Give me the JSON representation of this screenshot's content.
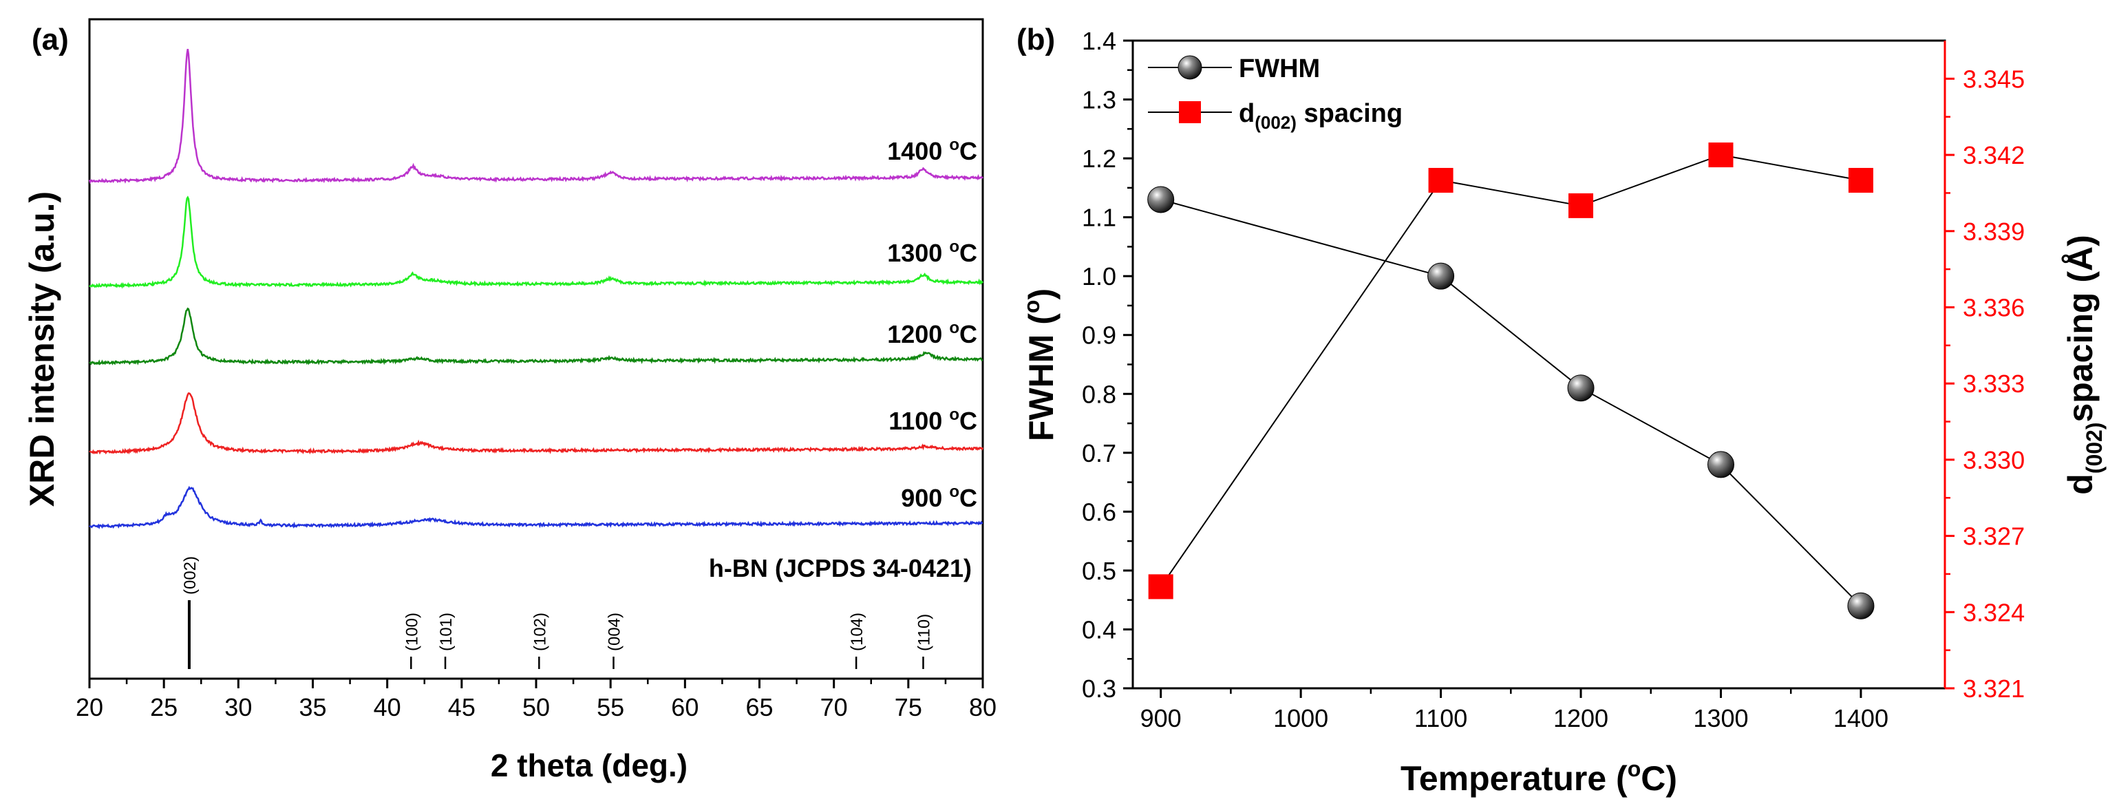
{
  "chart_data": [
    {
      "panel_label": "(a)",
      "type": "line",
      "xlabel": "2 theta (deg.)",
      "ylabel": "XRD intensity (a.u.)",
      "xlim": [
        20,
        80
      ],
      "xticks": [
        "20",
        "25",
        "30",
        "35",
        "40",
        "45",
        "50",
        "55",
        "60",
        "65",
        "70",
        "75",
        "80"
      ],
      "series": [
        {
          "name": "1400 °C",
          "label_main": "1400 ",
          "label_sup": "o",
          "label_unit": "C",
          "color": "#bb33cc",
          "peaks": [
            {
              "x": 26.6,
              "w": 0.3,
              "h": 1.0
            },
            {
              "x": 41.7,
              "w": 0.35,
              "h": 0.09
            },
            {
              "x": 43.0,
              "w": 1.2,
              "h": 0.03
            },
            {
              "x": 55.0,
              "w": 0.45,
              "h": 0.05
            },
            {
              "x": 76.0,
              "w": 0.35,
              "h": 0.07
            }
          ]
        },
        {
          "name": "1300 °C",
          "label_main": "1300 ",
          "label_sup": "o",
          "label_unit": "C",
          "color": "#22ee22",
          "peaks": [
            {
              "x": 26.6,
              "w": 0.32,
              "h": 0.7
            },
            {
              "x": 41.7,
              "w": 0.4,
              "h": 0.07
            },
            {
              "x": 43.0,
              "w": 1.2,
              "h": 0.03
            },
            {
              "x": 55.0,
              "w": 0.5,
              "h": 0.04
            },
            {
              "x": 76.0,
              "w": 0.4,
              "h": 0.06
            }
          ]
        },
        {
          "name": "1200 °C",
          "label_main": "1200 ",
          "label_sup": "o",
          "label_unit": "C",
          "color": "#118811",
          "peaks": [
            {
              "x": 26.6,
              "w": 0.42,
              "h": 0.52
            },
            {
              "x": 42.0,
              "w": 0.8,
              "h": 0.03
            },
            {
              "x": 55.0,
              "w": 0.6,
              "h": 0.03
            },
            {
              "x": 76.2,
              "w": 0.5,
              "h": 0.06
            }
          ]
        },
        {
          "name": "1100 °C",
          "label_main": "1100 ",
          "label_sup": "o",
          "label_unit": "C",
          "color": "#ee2222",
          "peaks": [
            {
              "x": 26.7,
              "w": 0.6,
              "h": 0.45
            },
            {
              "x": 42.2,
              "w": 1.0,
              "h": 0.06
            },
            {
              "x": 76.2,
              "w": 0.6,
              "h": 0.02
            }
          ]
        },
        {
          "name": "900 °C",
          "label_main": "900 ",
          "label_sup": "o",
          "label_unit": "C",
          "color": "#2233dd",
          "peaks": [
            {
              "x": 26.8,
              "w": 0.75,
              "h": 0.33
            },
            {
              "x": 25.2,
              "w": 0.25,
              "h": 0.05
            },
            {
              "x": 31.5,
              "w": 0.12,
              "h": 0.04
            },
            {
              "x": 42.8,
              "w": 1.6,
              "h": 0.05
            }
          ]
        }
      ],
      "reference": {
        "name": "h-BN (JCPDS 34-0421)",
        "lines": [
          {
            "x": 26.7,
            "hkl": "(002)",
            "h": 1.0
          },
          {
            "x": 41.6,
            "hkl": "(100)",
            "h": 0.08
          },
          {
            "x": 43.9,
            "hkl": "(101)",
            "h": 0.05
          },
          {
            "x": 50.2,
            "hkl": "(102)",
            "h": 0.04
          },
          {
            "x": 55.2,
            "hkl": "(004)",
            "h": 0.06
          },
          {
            "x": 71.5,
            "hkl": "(104)",
            "h": 0.03
          },
          {
            "x": 76.0,
            "hkl": "(110)",
            "h": 0.05
          }
        ]
      }
    },
    {
      "panel_label": "(b)",
      "type": "line",
      "xlabel_main": "Temperature (",
      "xlabel_sup": "o",
      "xlabel_end": "C)",
      "x": [
        900,
        1100,
        1200,
        1300,
        1400
      ],
      "xlim": [
        880,
        1460
      ],
      "xticks": [
        "900",
        "1000",
        "1100",
        "1200",
        "1300",
        "1400"
      ],
      "ylabel_left": "FWHM (°)",
      "ylabel_left_main": "FWHM (",
      "ylabel_left_sup": "o",
      "ylabel_left_end": ")",
      "ylim_left": [
        0.3,
        1.4
      ],
      "yticks_left": [
        "0.3",
        "0.4",
        "0.5",
        "0.6",
        "0.7",
        "0.8",
        "0.9",
        "1.0",
        "1.1",
        "1.2",
        "1.3",
        "1.4"
      ],
      "ylabel_right_main": "d",
      "ylabel_right_sub": "(002)",
      "ylabel_right_end": "spacing (Å)",
      "ylim_right": [
        3.321,
        3.3465
      ],
      "yticks_right": [
        "3.321",
        "3.324",
        "3.327",
        "3.330",
        "3.333",
        "3.336",
        "3.339",
        "3.342",
        "3.345"
      ],
      "right_axis_color": "#ff0000",
      "series": [
        {
          "name": "FWHM",
          "legend_main": "FWHM",
          "axis": "left",
          "marker": "sphere",
          "color": "#000000",
          "values": [
            1.13,
            1.0,
            0.81,
            0.68,
            0.44
          ]
        },
        {
          "name": "d(002) spacing",
          "legend_main": "d",
          "legend_sub": "(002)",
          "legend_end": " spacing",
          "axis": "right",
          "marker": "square",
          "color": "#ff0000",
          "values": [
            3.325,
            3.341,
            3.34,
            3.342,
            3.341
          ]
        }
      ]
    }
  ]
}
